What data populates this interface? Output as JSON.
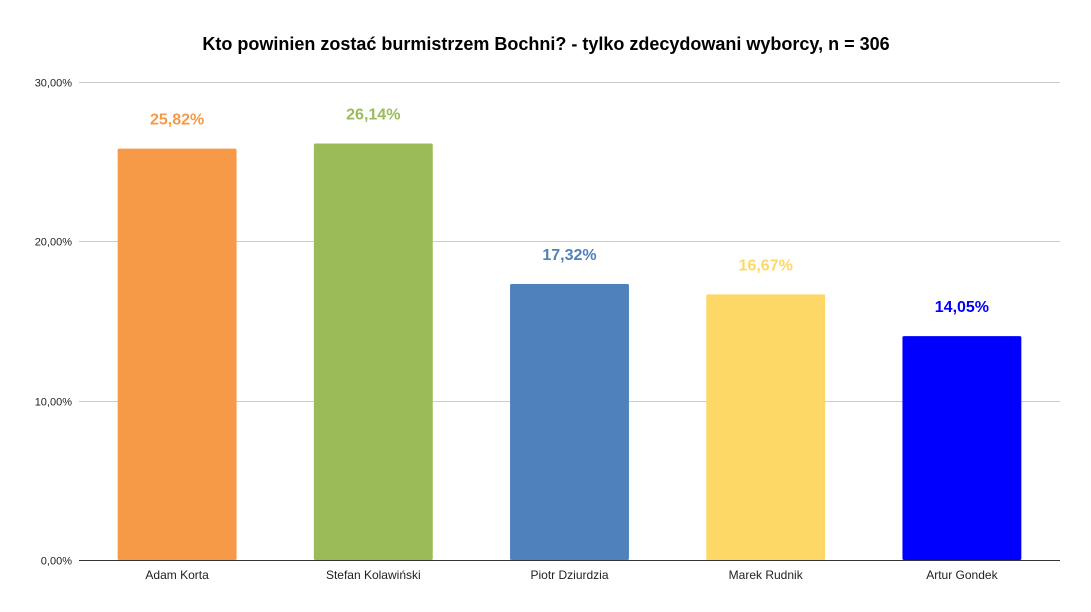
{
  "chart_data": {
    "type": "bar",
    "title": "Kto powinien zostać burmistrzem Bochni? - tylko zdecydowani wyborcy, n = 306",
    "categories": [
      "Adam Korta",
      "Stefan Kolawiński",
      "Piotr Dziurdzia",
      "Marek Rudnik",
      "Artur Gondek"
    ],
    "values": [
      25.82,
      26.14,
      17.32,
      16.67,
      14.05
    ],
    "value_labels": [
      "25,82%",
      "26,14%",
      "17,32%",
      "16,67%",
      "14,05%"
    ],
    "colors": [
      "#f79a48",
      "#9bbb59",
      "#4f81bd",
      "#fdd866",
      "#0000ff"
    ],
    "ylim": [
      0,
      30
    ],
    "yticks": [
      0,
      10,
      20,
      30
    ],
    "ytick_labels": [
      "0,00%",
      "10,00%",
      "20,00%",
      "30,00%"
    ],
    "grid": true,
    "legend": "none"
  }
}
